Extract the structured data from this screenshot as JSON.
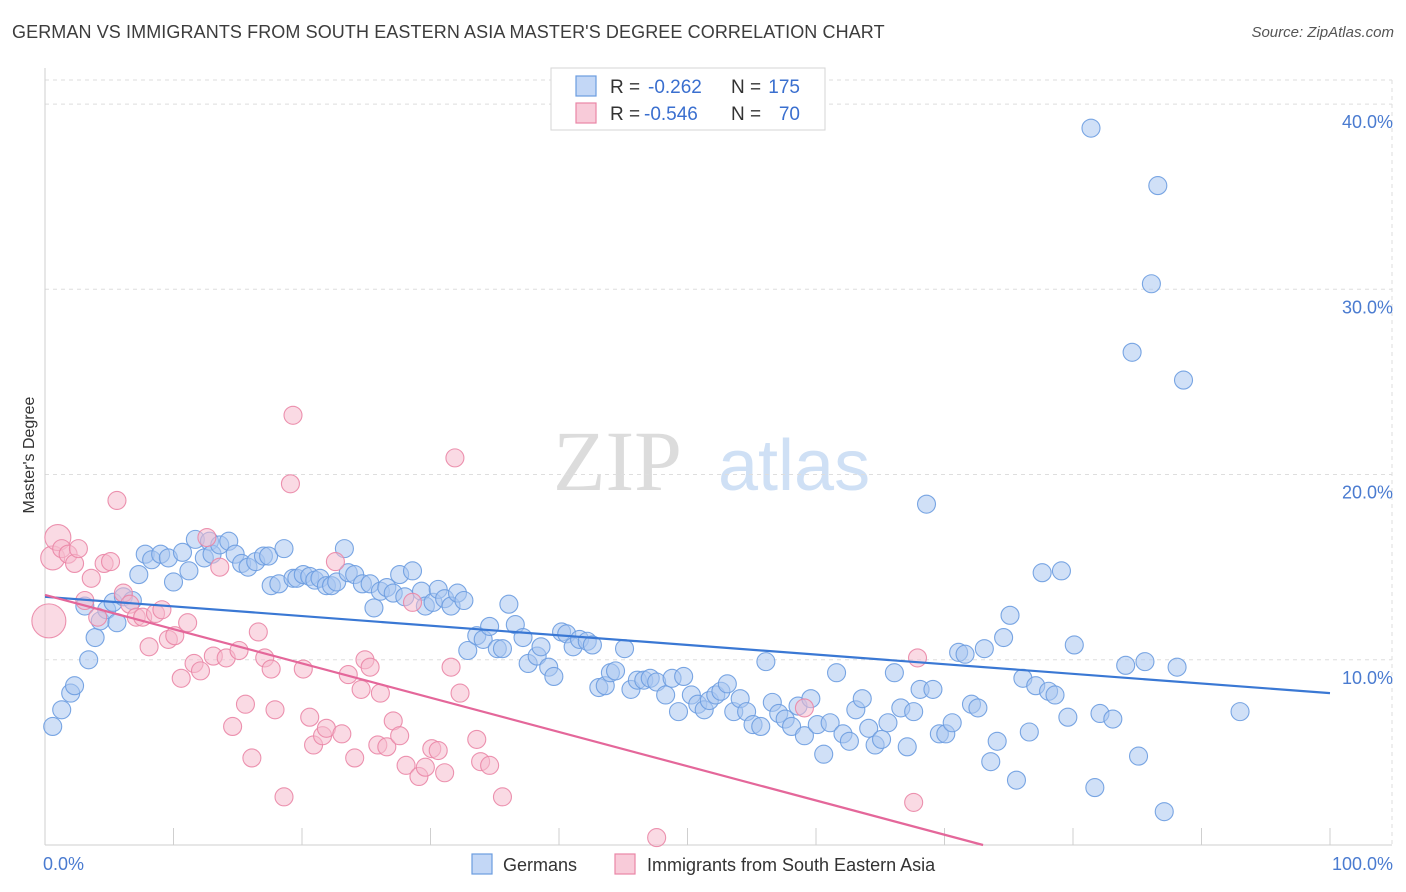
{
  "header": {
    "title": "GERMAN VS IMMIGRANTS FROM SOUTH EASTERN ASIA MASTER'S DEGREE CORRELATION CHART",
    "source": "Source: ZipAtlas.com"
  },
  "watermark": {
    "zip": "ZIP",
    "atlas": "atlas"
  },
  "legend": {
    "r_label": "R =",
    "n_label": "N =",
    "rows": [
      {
        "r": "-0.262",
        "n": "175",
        "color": "#9bbdf0"
      },
      {
        "r": "-0.546",
        "n": "70",
        "color": "#f4a9c0"
      }
    ]
  },
  "bottom_legend": {
    "items": [
      {
        "label": "Germans",
        "color": "#9bbdf0"
      },
      {
        "label": "Immigrants from South Eastern Asia",
        "color": "#f4a9c0"
      }
    ]
  },
  "chart_data": {
    "type": "scatter",
    "title": "GERMAN VS IMMIGRANTS FROM SOUTH EASTERN ASIA MASTER'S DEGREE CORRELATION CHART",
    "xlabel": "",
    "ylabel": "Master's Degree",
    "x_tick_labels": [
      "0.0%",
      "100.0%"
    ],
    "y_tick_labels": [
      "10.0%",
      "20.0%",
      "30.0%",
      "40.0%"
    ],
    "y_ticks": [
      10,
      20,
      30,
      40
    ],
    "xlim": [
      0,
      100
    ],
    "ylim": [
      0,
      40
    ],
    "grid": true,
    "legend_position": "top-center",
    "series": [
      {
        "name": "Germans",
        "color": "#6b9ce0",
        "fill": "#a9c6f1",
        "trend": {
          "x": [
            0,
            100
          ],
          "y": [
            13.4,
            8.2
          ]
        },
        "points": [
          [
            0.6,
            6.4
          ],
          [
            1.3,
            7.3
          ],
          [
            2.0,
            8.2
          ],
          [
            2.3,
            8.6
          ],
          [
            3.1,
            12.9
          ],
          [
            3.4,
            10.0
          ],
          [
            3.9,
            11.2
          ],
          [
            4.3,
            12.1
          ],
          [
            4.8,
            12.7
          ],
          [
            5.3,
            13.1
          ],
          [
            5.6,
            12.0
          ],
          [
            6.1,
            13.4
          ],
          [
            6.8,
            13.2
          ],
          [
            7.3,
            14.6
          ],
          [
            7.8,
            15.7
          ],
          [
            8.3,
            15.4
          ],
          [
            9.0,
            15.7
          ],
          [
            9.6,
            15.5
          ],
          [
            10.0,
            14.2
          ],
          [
            10.7,
            15.8
          ],
          [
            11.2,
            14.8
          ],
          [
            11.7,
            16.5
          ],
          [
            12.4,
            15.5
          ],
          [
            12.8,
            16.4
          ],
          [
            13.0,
            15.7
          ],
          [
            13.6,
            16.2
          ],
          [
            14.3,
            16.4
          ],
          [
            14.8,
            15.7
          ],
          [
            15.3,
            15.2
          ],
          [
            15.8,
            15.0
          ],
          [
            16.4,
            15.3
          ],
          [
            17.0,
            15.6
          ],
          [
            17.4,
            15.6
          ],
          [
            17.6,
            14.0
          ],
          [
            18.2,
            14.1
          ],
          [
            18.6,
            16.0
          ],
          [
            19.3,
            14.4
          ],
          [
            19.6,
            14.4
          ],
          [
            20.1,
            14.6
          ],
          [
            20.6,
            14.5
          ],
          [
            21.0,
            14.3
          ],
          [
            21.4,
            14.4
          ],
          [
            21.9,
            14.0
          ],
          [
            22.3,
            14.0
          ],
          [
            22.7,
            14.2
          ],
          [
            23.3,
            16.0
          ],
          [
            23.6,
            14.7
          ],
          [
            24.1,
            14.6
          ],
          [
            24.7,
            14.1
          ],
          [
            25.3,
            14.1
          ],
          [
            25.6,
            12.8
          ],
          [
            26.1,
            13.7
          ],
          [
            26.6,
            13.9
          ],
          [
            27.1,
            13.6
          ],
          [
            27.6,
            14.6
          ],
          [
            28.0,
            13.4
          ],
          [
            28.6,
            14.8
          ],
          [
            29.3,
            13.7
          ],
          [
            29.6,
            12.9
          ],
          [
            30.2,
            13.1
          ],
          [
            30.6,
            13.8
          ],
          [
            31.1,
            13.3
          ],
          [
            31.6,
            12.9
          ],
          [
            32.1,
            13.6
          ],
          [
            32.6,
            13.2
          ],
          [
            32.9,
            10.5
          ],
          [
            33.6,
            11.3
          ],
          [
            34.1,
            11.1
          ],
          [
            34.6,
            11.8
          ],
          [
            35.2,
            10.6
          ],
          [
            35.6,
            10.6
          ],
          [
            36.1,
            13.0
          ],
          [
            36.6,
            11.9
          ],
          [
            37.2,
            11.2
          ],
          [
            37.6,
            9.8
          ],
          [
            38.3,
            10.2
          ],
          [
            38.6,
            10.7
          ],
          [
            39.2,
            9.6
          ],
          [
            39.6,
            9.1
          ],
          [
            40.2,
            11.5
          ],
          [
            40.6,
            11.4
          ],
          [
            41.1,
            10.7
          ],
          [
            41.6,
            11.1
          ],
          [
            42.2,
            11.0
          ],
          [
            42.6,
            10.8
          ],
          [
            43.1,
            8.5
          ],
          [
            43.6,
            8.6
          ],
          [
            44.0,
            9.3
          ],
          [
            44.4,
            9.4
          ],
          [
            45.1,
            10.6
          ],
          [
            45.6,
            8.4
          ],
          [
            46.1,
            8.9
          ],
          [
            46.6,
            8.9
          ],
          [
            47.1,
            9.0
          ],
          [
            47.6,
            8.8
          ],
          [
            48.3,
            8.1
          ],
          [
            48.8,
            9.0
          ],
          [
            49.3,
            7.2
          ],
          [
            49.7,
            9.1
          ],
          [
            50.3,
            8.1
          ],
          [
            50.8,
            7.6
          ],
          [
            51.3,
            7.3
          ],
          [
            51.7,
            7.8
          ],
          [
            52.2,
            8.1
          ],
          [
            52.6,
            8.3
          ],
          [
            53.1,
            8.7
          ],
          [
            53.6,
            7.2
          ],
          [
            54.1,
            7.9
          ],
          [
            54.6,
            7.2
          ],
          [
            55.1,
            6.5
          ],
          [
            55.7,
            6.4
          ],
          [
            56.1,
            9.9
          ],
          [
            56.6,
            7.7
          ],
          [
            57.1,
            7.1
          ],
          [
            57.6,
            6.8
          ],
          [
            58.1,
            6.4
          ],
          [
            58.6,
            7.5
          ],
          [
            59.1,
            5.9
          ],
          [
            59.6,
            7.9
          ],
          [
            60.1,
            6.5
          ],
          [
            60.6,
            4.9
          ],
          [
            61.1,
            6.6
          ],
          [
            61.6,
            9.3
          ],
          [
            62.1,
            6.0
          ],
          [
            62.6,
            5.6
          ],
          [
            63.1,
            7.3
          ],
          [
            63.6,
            7.9
          ],
          [
            64.1,
            6.3
          ],
          [
            64.6,
            5.4
          ],
          [
            65.1,
            5.7
          ],
          [
            65.6,
            6.6
          ],
          [
            66.1,
            9.3
          ],
          [
            66.6,
            7.4
          ],
          [
            67.1,
            5.3
          ],
          [
            67.6,
            7.2
          ],
          [
            68.1,
            8.4
          ],
          [
            68.6,
            18.4
          ],
          [
            69.1,
            8.4
          ],
          [
            69.6,
            6.0
          ],
          [
            70.1,
            6.0
          ],
          [
            70.6,
            6.6
          ],
          [
            71.1,
            10.4
          ],
          [
            71.6,
            10.3
          ],
          [
            72.1,
            7.6
          ],
          [
            72.6,
            7.4
          ],
          [
            73.1,
            10.6
          ],
          [
            73.6,
            4.5
          ],
          [
            74.1,
            5.6
          ],
          [
            74.6,
            11.2
          ],
          [
            75.1,
            12.4
          ],
          [
            75.6,
            3.5
          ],
          [
            76.1,
            9.0
          ],
          [
            76.6,
            6.1
          ],
          [
            77.1,
            8.6
          ],
          [
            77.6,
            14.7
          ],
          [
            78.1,
            8.3
          ],
          [
            78.6,
            8.1
          ],
          [
            79.1,
            14.8
          ],
          [
            79.6,
            6.9
          ],
          [
            80.1,
            10.8
          ],
          [
            81.4,
            38.7
          ],
          [
            81.7,
            3.1
          ],
          [
            82.1,
            7.1
          ],
          [
            83.1,
            6.8
          ],
          [
            84.1,
            9.7
          ],
          [
            84.6,
            26.6
          ],
          [
            85.1,
            4.8
          ],
          [
            85.6,
            9.9
          ],
          [
            86.1,
            30.3
          ],
          [
            86.6,
            35.6
          ],
          [
            87.1,
            1.8
          ],
          [
            88.1,
            9.6
          ],
          [
            88.6,
            25.1
          ],
          [
            93.0,
            7.2
          ]
        ]
      },
      {
        "name": "Immigrants from South Eastern Asia",
        "color": "#ea86a6",
        "fill": "#f6bccd",
        "trend": {
          "x": [
            0,
            73
          ],
          "y": [
            13.5,
            0
          ]
        },
        "points": [
          [
            0.3,
            12.1
          ],
          [
            0.6,
            15.5
          ],
          [
            1.0,
            16.6
          ],
          [
            1.3,
            16.0
          ],
          [
            1.8,
            15.7
          ],
          [
            2.3,
            15.2
          ],
          [
            2.6,
            16.0
          ],
          [
            3.1,
            13.2
          ],
          [
            3.6,
            14.4
          ],
          [
            4.1,
            12.3
          ],
          [
            4.6,
            15.2
          ],
          [
            5.1,
            15.3
          ],
          [
            5.6,
            18.6
          ],
          [
            6.1,
            13.6
          ],
          [
            6.6,
            13.0
          ],
          [
            7.1,
            12.3
          ],
          [
            7.6,
            12.3
          ],
          [
            8.1,
            10.7
          ],
          [
            8.6,
            12.5
          ],
          [
            9.1,
            12.7
          ],
          [
            9.6,
            11.1
          ],
          [
            10.1,
            11.3
          ],
          [
            10.6,
            9.0
          ],
          [
            11.1,
            12.0
          ],
          [
            11.6,
            9.8
          ],
          [
            12.1,
            9.4
          ],
          [
            12.6,
            16.6
          ],
          [
            13.1,
            10.2
          ],
          [
            13.6,
            15.0
          ],
          [
            14.1,
            10.1
          ],
          [
            14.6,
            6.4
          ],
          [
            15.1,
            10.5
          ],
          [
            15.6,
            7.6
          ],
          [
            16.1,
            4.7
          ],
          [
            16.6,
            11.5
          ],
          [
            17.1,
            10.1
          ],
          [
            17.6,
            9.5
          ],
          [
            17.9,
            7.3
          ],
          [
            18.6,
            2.6
          ],
          [
            19.1,
            19.5
          ],
          [
            19.3,
            23.2
          ],
          [
            20.1,
            9.5
          ],
          [
            20.6,
            6.9
          ],
          [
            20.9,
            5.4
          ],
          [
            21.6,
            5.9
          ],
          [
            21.9,
            6.3
          ],
          [
            22.6,
            15.3
          ],
          [
            23.1,
            6.0
          ],
          [
            23.6,
            9.2
          ],
          [
            24.1,
            4.7
          ],
          [
            24.6,
            8.4
          ],
          [
            24.9,
            10.0
          ],
          [
            25.3,
            9.6
          ],
          [
            25.9,
            5.4
          ],
          [
            26.1,
            8.2
          ],
          [
            26.6,
            5.3
          ],
          [
            27.1,
            6.7
          ],
          [
            27.6,
            5.9
          ],
          [
            28.1,
            4.3
          ],
          [
            28.6,
            13.1
          ],
          [
            29.1,
            3.7
          ],
          [
            29.6,
            4.2
          ],
          [
            30.1,
            5.2
          ],
          [
            30.6,
            5.1
          ],
          [
            31.1,
            3.9
          ],
          [
            31.6,
            9.6
          ],
          [
            31.9,
            20.9
          ],
          [
            32.3,
            8.2
          ],
          [
            33.6,
            5.7
          ],
          [
            33.9,
            4.5
          ],
          [
            34.6,
            4.3
          ],
          [
            35.6,
            2.6
          ],
          [
            47.6,
            0.4
          ],
          [
            59.1,
            7.4
          ],
          [
            67.6,
            2.3
          ],
          [
            67.9,
            10.1
          ]
        ]
      }
    ]
  }
}
